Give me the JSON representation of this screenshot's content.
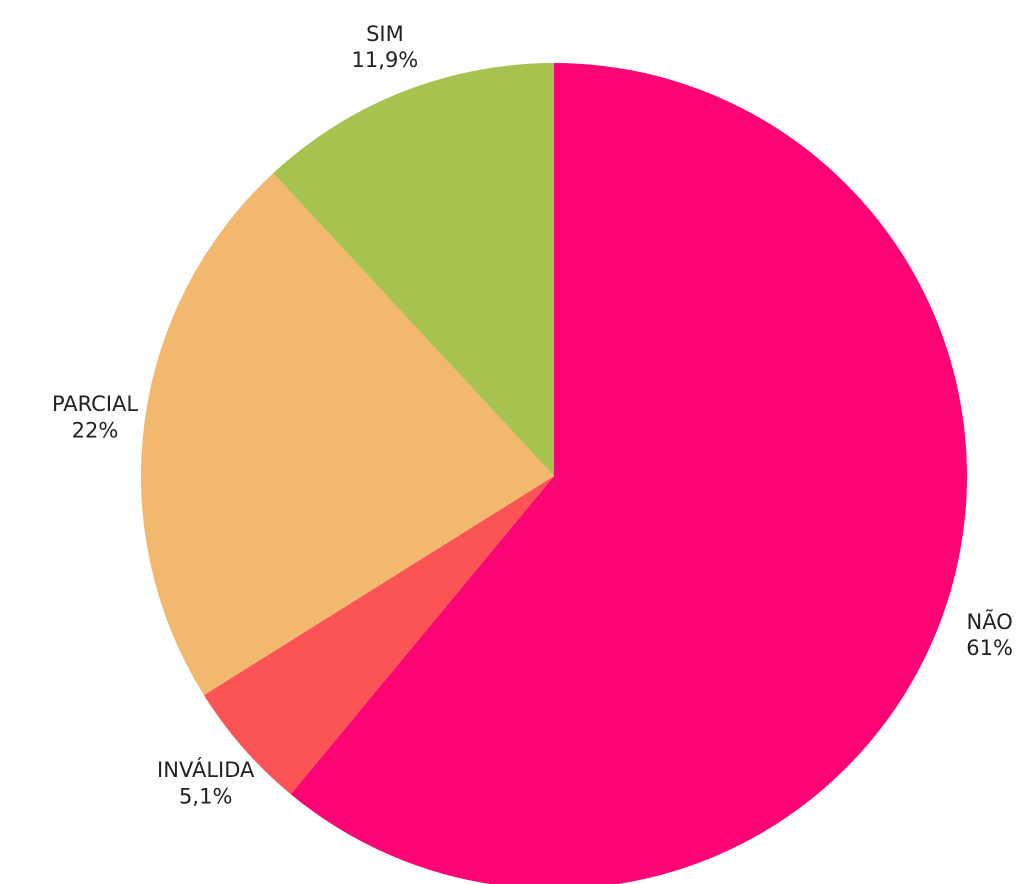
{
  "chart_data": {
    "type": "pie",
    "categories": [
      "NÃO",
      "INVÁLIDA",
      "PARCIAL",
      "SIM"
    ],
    "values": [
      61,
      5.1,
      22,
      11.9
    ],
    "value_labels": [
      "61%",
      "5,1%",
      "22%",
      "11,9%"
    ],
    "colors": [
      "#fc0474",
      "#fc5454",
      "#f2b96e",
      "#a6c24f"
    ],
    "start": "12 o'clock",
    "direction": "clockwise",
    "legend": "none",
    "title": ""
  }
}
